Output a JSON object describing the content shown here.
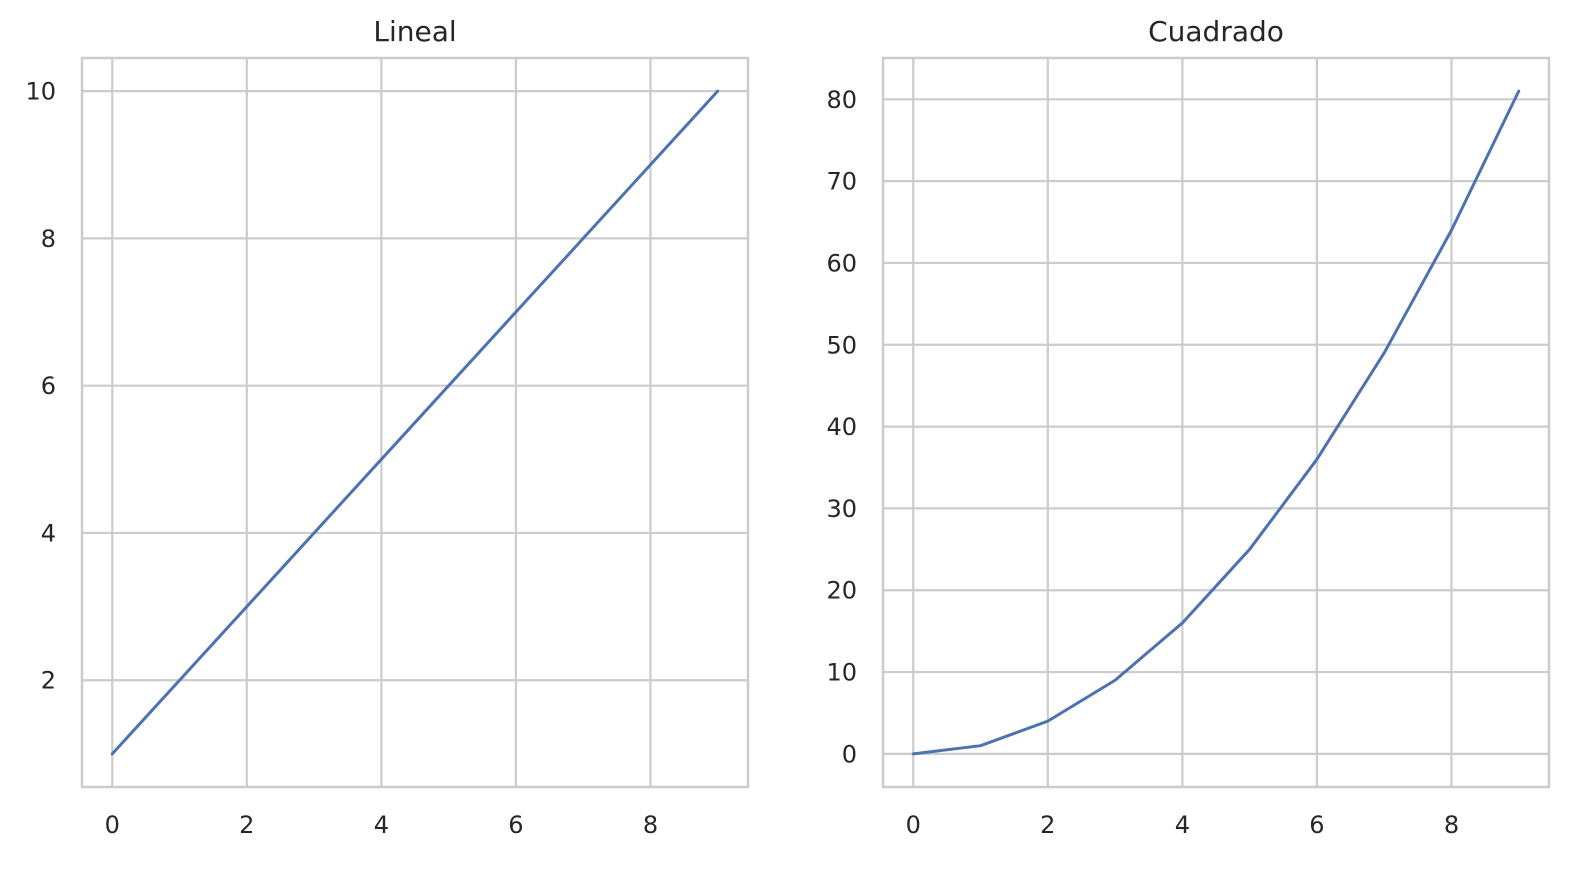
{
  "chart_data": [
    {
      "type": "line",
      "title": "Lineal",
      "xlabel": "",
      "ylabel": "",
      "x": [
        0,
        1,
        2,
        3,
        4,
        5,
        6,
        7,
        8,
        9
      ],
      "series": [
        {
          "values": [
            1,
            2,
            3,
            4,
            5,
            6,
            7,
            8,
            9,
            10
          ]
        }
      ],
      "xlim": [
        -0.45,
        9.45
      ],
      "ylim": [
        0.55,
        10.45
      ],
      "xticks": [
        0,
        2,
        4,
        6,
        8
      ],
      "yticks": [
        2,
        4,
        6,
        8,
        10
      ],
      "grid": true,
      "line_color": "#4c72b0"
    },
    {
      "type": "line",
      "title": "Cuadrado",
      "xlabel": "",
      "ylabel": "",
      "x": [
        0,
        1,
        2,
        3,
        4,
        5,
        6,
        7,
        8,
        9
      ],
      "series": [
        {
          "values": [
            0,
            1,
            4,
            9,
            16,
            25,
            36,
            49,
            64,
            81
          ]
        }
      ],
      "xlim": [
        -0.45,
        9.45
      ],
      "ylim": [
        -4.05,
        85.05
      ],
      "xticks": [
        0,
        2,
        4,
        6,
        8
      ],
      "yticks": [
        0,
        10,
        20,
        30,
        40,
        50,
        60,
        70,
        80
      ],
      "grid": true,
      "line_color": "#4c72b0"
    }
  ]
}
